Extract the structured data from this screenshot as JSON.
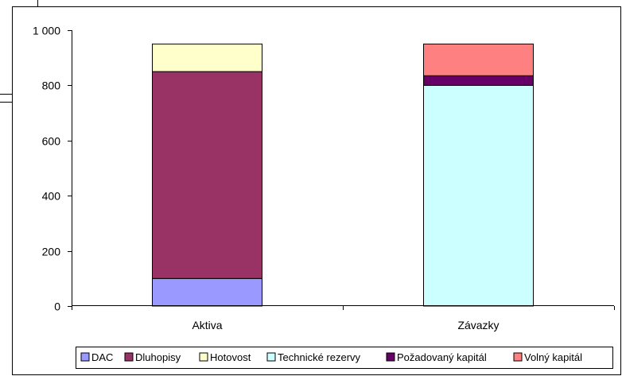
{
  "chart_data": {
    "type": "bar",
    "stacked": true,
    "categories": [
      "Aktiva",
      "Závazky"
    ],
    "series": [
      {
        "name": "DAC",
        "values": [
          100,
          0
        ],
        "color": "#9999ff"
      },
      {
        "name": "Dluhopisy",
        "values": [
          750,
          0
        ],
        "color": "#993366"
      },
      {
        "name": "Hotovost",
        "values": [
          100,
          0
        ],
        "color": "#ffffcc"
      },
      {
        "name": "Technické rezervy",
        "values": [
          0,
          800
        ],
        "color": "#ccffff"
      },
      {
        "name": "Požadovaný kapitál",
        "values": [
          0,
          35
        ],
        "color": "#660066"
      },
      {
        "name": "Volný kapitál",
        "values": [
          0,
          115
        ],
        "color": "#ff8080"
      }
    ],
    "y_ticks": [
      0,
      200,
      400,
      600,
      800,
      1000
    ],
    "y_tick_labels": [
      "0",
      "200",
      "400",
      "600",
      "800",
      "1 000"
    ],
    "ylim": [
      0,
      1000
    ],
    "grid": false,
    "legend_position": "bottom",
    "title": "",
    "xlabel": "",
    "ylabel": ""
  }
}
